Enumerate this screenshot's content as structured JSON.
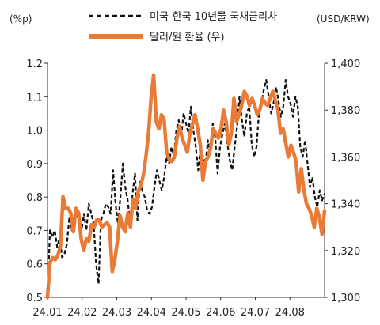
{
  "chart_data": {
    "type": "line",
    "left_unit": "(%p)",
    "right_unit": "(USD/KRW)",
    "legend": [
      "미국-한국 10년물 국채금리차",
      "달러/원 환율 (우)"
    ],
    "x_labels": [
      "24.01",
      "24.02",
      "24.03",
      "24.04",
      "24.05",
      "24.06",
      "24.07",
      "24.08"
    ],
    "y_left": {
      "min": 0.5,
      "max": 1.2,
      "ticks": [
        "0.5",
        "0.6",
        "0.7",
        "0.8",
        "0.9",
        "1.0",
        "1.1",
        "1.2"
      ]
    },
    "y_right": {
      "min": 1300,
      "max": 1400,
      "ticks": [
        "1,300",
        "1,320",
        "1,340",
        "1,360",
        "1,380",
        "1,400"
      ]
    },
    "series": [
      {
        "name": "미국-한국 10년물 국채금리차",
        "axis": "left",
        "style": "dashed",
        "color": "#111111",
        "values": [
          0.5,
          0.7,
          0.68,
          0.7,
          0.65,
          0.68,
          0.62,
          0.63,
          0.66,
          0.74,
          0.7,
          0.73,
          0.75,
          0.73,
          0.7,
          0.75,
          0.7,
          0.78,
          0.75,
          0.72,
          0.6,
          0.54,
          0.73,
          0.75,
          0.78,
          0.77,
          0.75,
          0.88,
          0.78,
          0.72,
          0.8,
          0.9,
          0.83,
          0.79,
          0.72,
          0.81,
          0.87,
          0.73,
          0.85,
          0.82,
          0.8,
          0.76,
          0.75,
          0.77,
          0.83,
          0.88,
          0.85,
          0.82,
          0.86,
          0.92,
          0.9,
          0.95,
          0.92,
          1.0,
          1.03,
          0.98,
          1.05,
          1.02,
          0.99,
          1.07,
          1.0,
          0.95,
          0.88,
          0.95,
          0.92,
          0.9,
          0.97,
          0.93,
          1.02,
          0.98,
          0.87,
          0.95,
          0.99,
          1.02,
          0.96,
          0.91,
          0.88,
          0.95,
          1.01,
          1.1,
          1.03,
          0.98,
          1.05,
          1.07,
          0.96,
          0.92,
          0.95,
          1.05,
          1.08,
          1.12,
          1.15,
          1.1,
          1.05,
          1.08,
          1.13,
          1.09,
          1.04,
          1.07,
          1.15,
          1.1,
          1.08,
          1.04,
          1.1,
          1.07,
          0.95,
          0.92,
          0.97,
          0.9,
          0.83,
          0.86,
          0.8,
          0.77,
          0.82,
          0.79,
          0.81
        ]
      },
      {
        "name": "달러/원 환율 (우)",
        "axis": "right",
        "style": "solid",
        "color": "#E97B37",
        "values": [
          1300,
          1315,
          1317,
          1316,
          1318,
          1322,
          1343,
          1338,
          1338,
          1336,
          1328,
          1338,
          1336,
          1325,
          1320,
          1325,
          1324,
          1331,
          1330,
          1333,
          1333,
          1330,
          1331,
          1332,
          1330,
          1311,
          1316,
          1324,
          1335,
          1330,
          1328,
          1336,
          1330,
          1342,
          1338,
          1345,
          1348,
          1352,
          1360,
          1370,
          1385,
          1395,
          1375,
          1372,
          1378,
          1376,
          1362,
          1359,
          1358,
          1360,
          1368,
          1373,
          1368,
          1365,
          1362,
          1370,
          1374,
          1378,
          1372,
          1365,
          1350,
          1358,
          1360,
          1364,
          1372,
          1370,
          1368,
          1372,
          1380,
          1375,
          1365,
          1370,
          1385,
          1375,
          1378,
          1382,
          1388,
          1386,
          1382,
          1385,
          1382,
          1378,
          1380,
          1385,
          1383,
          1382,
          1385,
          1388,
          1384,
          1380,
          1370,
          1372,
          1366,
          1360,
          1365,
          1362,
          1358,
          1345,
          1355,
          1346,
          1340,
          1338,
          1335,
          1330,
          1338,
          1334,
          1327,
          1337
        ]
      }
    ]
  }
}
